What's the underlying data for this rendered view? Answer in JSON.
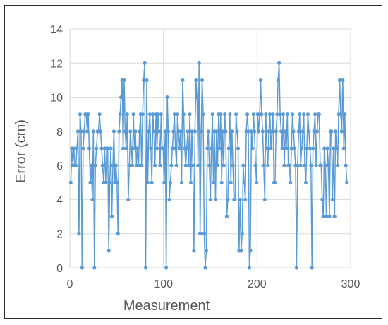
{
  "chart_data": {
    "type": "line",
    "title": "",
    "xlabel": "Measurement",
    "ylabel": "Error (cm)",
    "xlim": [
      0,
      300
    ],
    "ylim": [
      0,
      14
    ],
    "x_ticks": [
      0,
      100,
      200,
      300
    ],
    "y_ticks": [
      0,
      2,
      4,
      6,
      8,
      10,
      12,
      14
    ],
    "grid": true,
    "legend": "none",
    "line_color": "#5b9bd5",
    "series": [
      {
        "values": [
          5,
          7,
          6,
          7,
          6,
          6,
          7,
          8,
          2,
          9,
          8,
          0,
          7,
          8,
          9,
          9,
          8,
          9,
          7,
          5,
          6,
          4,
          8,
          0,
          6,
          7,
          8,
          8,
          9,
          8,
          7,
          6,
          5,
          7,
          5,
          7,
          7,
          1,
          5,
          7,
          3,
          6,
          8,
          5,
          6,
          5,
          2,
          8,
          9,
          10,
          11,
          7,
          11,
          8,
          7,
          9,
          4,
          6,
          8,
          7,
          6,
          9,
          7,
          8,
          6,
          7,
          6,
          8,
          9,
          6,
          9,
          11,
          12,
          0,
          11,
          5,
          8,
          9,
          7,
          5,
          9,
          8,
          6,
          9,
          7,
          9,
          8,
          6,
          9,
          7,
          7,
          5,
          8,
          0,
          10,
          8,
          4,
          5,
          6,
          7,
          8,
          9,
          7,
          6,
          9,
          8,
          7,
          8,
          5,
          11,
          9,
          7,
          6,
          7,
          8,
          6,
          9,
          5,
          8,
          6,
          1,
          8,
          11,
          10,
          6,
          12,
          2,
          8,
          11,
          9,
          2,
          0,
          1,
          7,
          8,
          6,
          4,
          7,
          9,
          5,
          8,
          4,
          8,
          6,
          9,
          7,
          9,
          5,
          8,
          6,
          9,
          8,
          3,
          4,
          7,
          9,
          5,
          8,
          6,
          4,
          4,
          9,
          8,
          7,
          1,
          4,
          1,
          2,
          6,
          5,
          4,
          8,
          9,
          8,
          0,
          1,
          8,
          7,
          9,
          8,
          6,
          5,
          9,
          8,
          9,
          11,
          9,
          8,
          6,
          4,
          9,
          7,
          6,
          8,
          9,
          7,
          8,
          9,
          5,
          5,
          8,
          9,
          11,
          12,
          9,
          8,
          7,
          9,
          6,
          8,
          7,
          9,
          6,
          6,
          5,
          7,
          9,
          8,
          7,
          6,
          0,
          6,
          8,
          9,
          6,
          7,
          8,
          9,
          6,
          5,
          7,
          9,
          8,
          7,
          6,
          0,
          7,
          8,
          9,
          6,
          8,
          9,
          9,
          6,
          6,
          4,
          3,
          7,
          6,
          3,
          7,
          6,
          3,
          8,
          8,
          4,
          7,
          3,
          8,
          7,
          6,
          9,
          11,
          9,
          8,
          11,
          7,
          9,
          6,
          5
        ]
      }
    ]
  }
}
